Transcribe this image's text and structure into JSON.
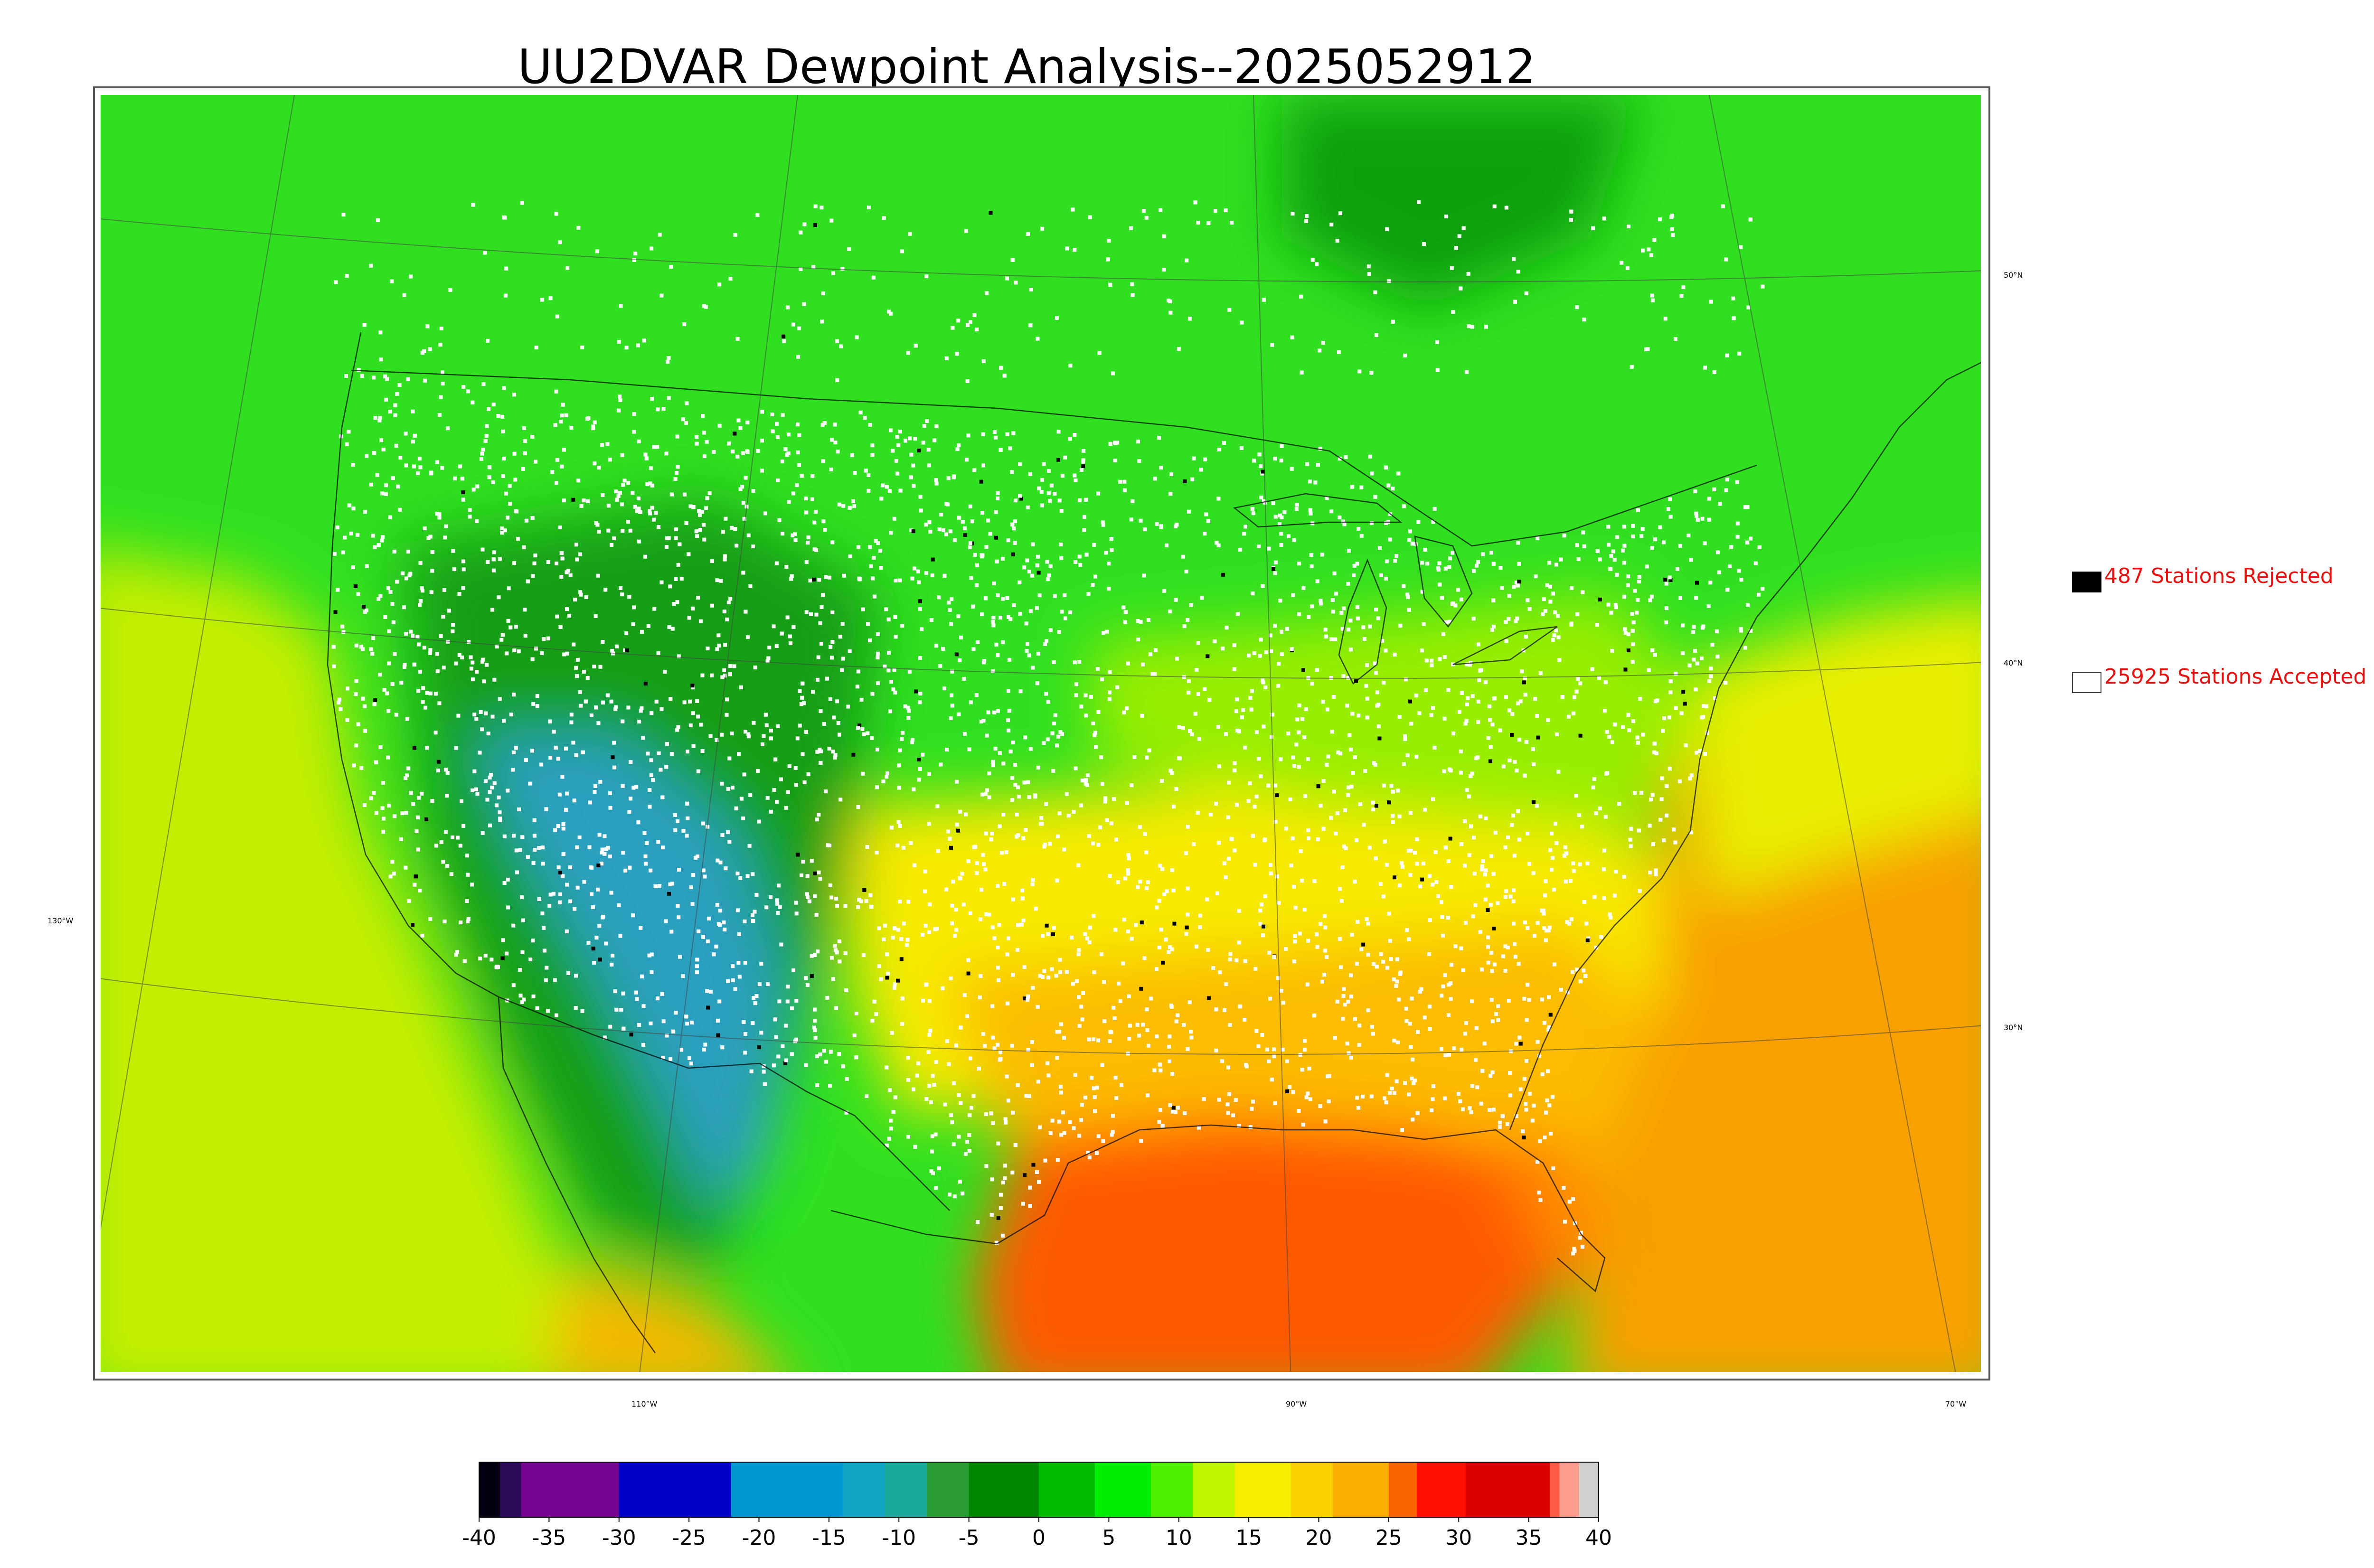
{
  "title": "UU2DVAR Dewpoint Analysis--2025052912",
  "legend": {
    "rejected": {
      "count": 487,
      "label": "487 Stations Rejected",
      "marker_color": "#000000"
    },
    "accepted": {
      "count": 25925,
      "label": "25925 Stations Accepted",
      "marker_color": "#ffffff"
    },
    "text_color": "#e8110f"
  },
  "graticule_labels": {
    "longitudes": [
      "130°W",
      "110°W",
      "90°W",
      "70°W"
    ],
    "latitudes": [
      "50°N",
      "40°N",
      "30°N"
    ]
  },
  "colorbar": {
    "min": -40,
    "max": 40,
    "tick_values": [
      -40,
      -35,
      -30,
      -25,
      -20,
      -15,
      -10,
      -5,
      0,
      5,
      10,
      15,
      20,
      25,
      30,
      35,
      40
    ],
    "tick_labels": [
      "-40",
      "-35",
      "-30",
      "-25",
      "-20",
      "-15",
      "-10",
      "-5",
      "0",
      "5",
      "10",
      "15",
      "20",
      "25",
      "30",
      "35",
      "40"
    ],
    "segments": [
      {
        "from": -40,
        "to": -38.5,
        "color": "#050011"
      },
      {
        "from": -38.5,
        "to": -37,
        "color": "#2c0a5a"
      },
      {
        "from": -37,
        "to": -30,
        "color": "#750490"
      },
      {
        "from": -30,
        "to": -22,
        "color": "#0000c8"
      },
      {
        "from": -22,
        "to": -14,
        "color": "#0098d0"
      },
      {
        "from": -14,
        "to": -11,
        "color": "#12a2c4"
      },
      {
        "from": -11,
        "to": -8,
        "color": "#1aa89a"
      },
      {
        "from": -8,
        "to": -5,
        "color": "#2a9a35"
      },
      {
        "from": -5,
        "to": 0,
        "color": "#008600"
      },
      {
        "from": 0,
        "to": 4,
        "color": "#00bb00"
      },
      {
        "from": 4,
        "to": 8,
        "color": "#00ee00"
      },
      {
        "from": 8,
        "to": 11,
        "color": "#4ff000"
      },
      {
        "from": 11,
        "to": 14,
        "color": "#bff500"
      },
      {
        "from": 14,
        "to": 18,
        "color": "#f5ee00"
      },
      {
        "from": 18,
        "to": 21,
        "color": "#fcd000"
      },
      {
        "from": 21,
        "to": 25,
        "color": "#fcae00"
      },
      {
        "from": 25,
        "to": 27,
        "color": "#f86400"
      },
      {
        "from": 27,
        "to": 30.5,
        "color": "#ff1000"
      },
      {
        "from": 30.5,
        "to": 36.5,
        "color": "#dd0000"
      },
      {
        "from": 36.5,
        "to": 37.2,
        "color": "#ff5a45"
      },
      {
        "from": 37.2,
        "to": 38.6,
        "color": "#ff9e90"
      },
      {
        "from": 38.6,
        "to": 40,
        "color": "#d0d0d0"
      }
    ]
  },
  "map_colors": {
    "ocean_pacific": "#c4f000",
    "ocean_gulf": "#ff6f00",
    "ocean_atlantic": "#f9a200",
    "canada": "#10e010",
    "plains_south": "#f7ee00",
    "rockies_south": "#2fa0c0",
    "rockies": "#14a014",
    "boundary_line": "#000000"
  }
}
